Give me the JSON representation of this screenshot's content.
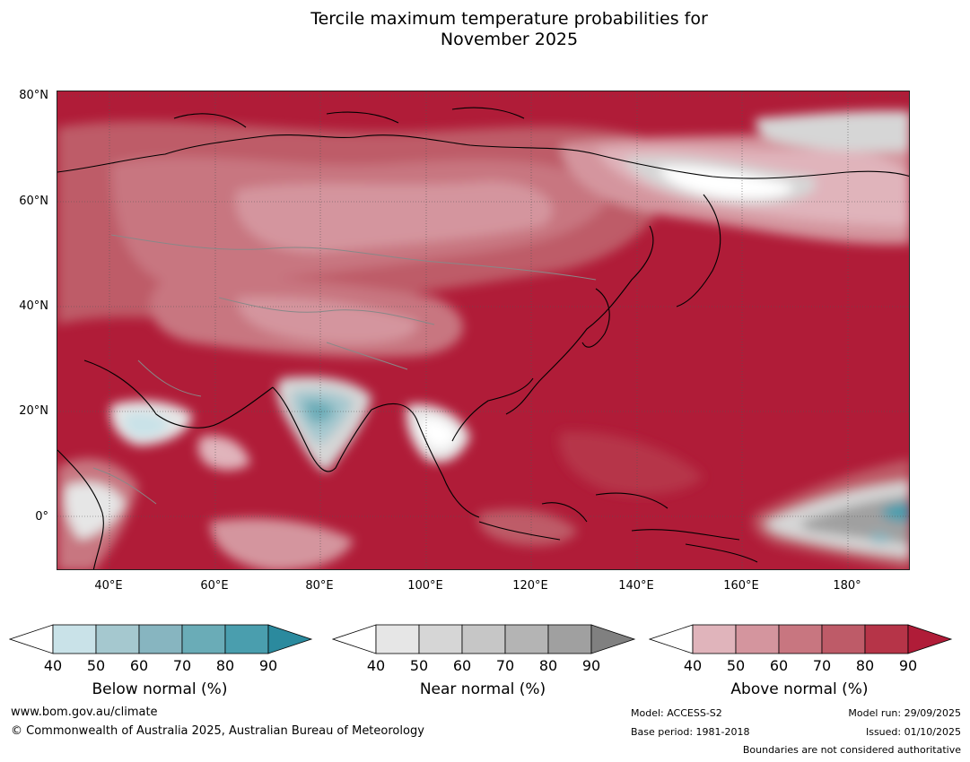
{
  "title": {
    "line1": "Tercile maximum temperature probabilities for",
    "line2": "November 2025"
  },
  "map": {
    "projection": "equirectangular",
    "region": "Asia, Indian Ocean, western Pacific",
    "lat_labels": [
      "80°N",
      "60°N",
      "40°N",
      "20°N",
      "0°"
    ],
    "lon_labels": [
      "40°E",
      "60°E",
      "80°E",
      "100°E",
      "120°E",
      "140°E",
      "160°E",
      "180°"
    ]
  },
  "colorbars": [
    {
      "name": "below",
      "label": "Below normal (%)",
      "ticks": [
        "40",
        "50",
        "60",
        "70",
        "80",
        "90"
      ],
      "colors": [
        "#ffffff",
        "#c9e2e8",
        "#a5c8cf",
        "#87b5c0",
        "#6aacb7",
        "#4a9eae",
        "#2b8a9e"
      ]
    },
    {
      "name": "near",
      "label": "Near normal (%)",
      "ticks": [
        "40",
        "50",
        "60",
        "70",
        "80",
        "90"
      ],
      "colors": [
        "#ffffff",
        "#e6e6e6",
        "#d6d6d6",
        "#c6c6c6",
        "#b4b4b4",
        "#a0a0a0",
        "#808080"
      ]
    },
    {
      "name": "above",
      "label": "Above normal (%)",
      "ticks": [
        "40",
        "50",
        "60",
        "70",
        "80",
        "90"
      ],
      "colors": [
        "#ffffff",
        "#e0b4bb",
        "#d4959e",
        "#c87680",
        "#be5b68",
        "#b63448",
        "#b01c38"
      ]
    }
  ],
  "footer": {
    "website": "www.bom.gov.au/climate",
    "copyright": "© Commonwealth of Australia 2025, Australian Bureau of Meteorology",
    "model": "Model: ACCESS-S2",
    "base_period": "Base period: 1981-2018",
    "model_run": "Model run: 29/09/2025",
    "issued": "Issued: 01/10/2025",
    "disclaimer": "Boundaries are not considered authoritative"
  }
}
